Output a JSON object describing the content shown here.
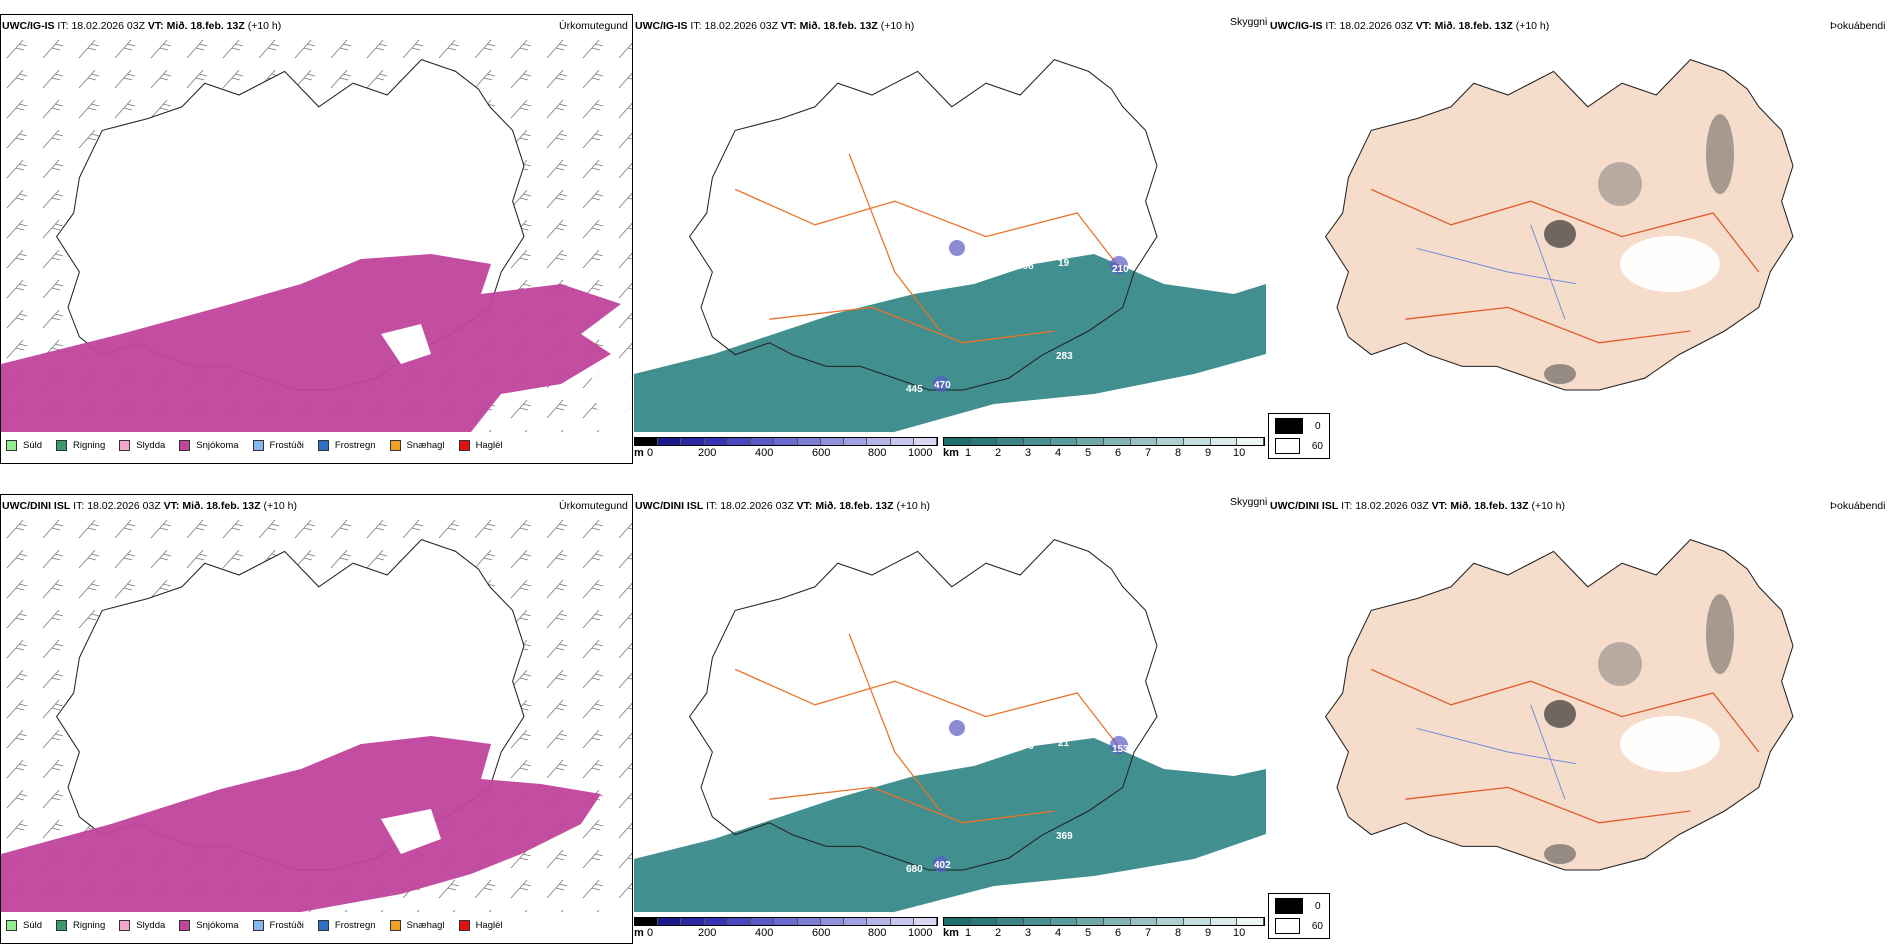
{
  "rows": [
    {
      "model": "UWC/IG-IS",
      "it_label": "IT:",
      "it_value": "18.02.2026 03Z",
      "vt_label": "VT:",
      "vt_value": "Mið. 18.feb. 13Z",
      "lead": "(+10 h)",
      "precip_title": "Úrkomutegund",
      "visibility_title": "Skyggni",
      "fog_title": "Þokuábendi",
      "terrain_labels": [
        "898",
        "19",
        "210",
        "283",
        "445",
        "470"
      ]
    },
    {
      "model": "UWC/DINI ISL",
      "it_label": "IT:",
      "it_value": "18.02.2026 03Z",
      "vt_label": "VT:",
      "vt_value": "Mið. 18.feb. 13Z",
      "lead": "(+10 h)",
      "precip_title": "Úrkomutegund",
      "visibility_title": "Skyggni",
      "fog_title": "Þokuábendi",
      "terrain_labels": [
        "376",
        "21",
        "153",
        "369",
        "680",
        "402"
      ]
    }
  ],
  "precip_legend": [
    {
      "label": "Súld",
      "color": "#90ee90"
    },
    {
      "label": "Rigning",
      "color": "#3a9a6a"
    },
    {
      "label": "Slydda",
      "color": "#f0a8d0"
    },
    {
      "label": "Snjókoma",
      "color": "#c0449c"
    },
    {
      "label": "Frostúði",
      "color": "#88b8f0"
    },
    {
      "label": "Frostregn",
      "color": "#3070c8"
    },
    {
      "label": "Snæhagl",
      "color": "#f0a020"
    },
    {
      "label": "Haglél",
      "color": "#e01010"
    }
  ],
  "elevation_bar": {
    "unit": "m",
    "ticks": [
      "0",
      "200",
      "400",
      "600",
      "800",
      "1000"
    ],
    "colors": [
      "#000000",
      "#1a1a8a",
      "#2a2aa0",
      "#3535b4",
      "#4848c0",
      "#5a5ac8",
      "#6c6cd0",
      "#7e7ed6",
      "#9090dc",
      "#a2a2e2",
      "#b4b4e8",
      "#c6c6ee",
      "#d8d8f2"
    ]
  },
  "visibility_bar": {
    "unit": "km",
    "ticks": [
      "1",
      "2",
      "3",
      "4",
      "5",
      "6",
      "7",
      "8",
      "9",
      "10"
    ],
    "colors": [
      "#1e6e6e",
      "#2a7878",
      "#3a8484",
      "#4a9090",
      "#5a9c9c",
      "#6ea8a8",
      "#82b4b4",
      "#98c2c2",
      "#aed0d0",
      "#c4dede",
      "#dae9e9",
      "#eef5f5"
    ]
  },
  "fog_key": [
    {
      "label": "0",
      "color": "#000000"
    },
    {
      "label": "60",
      "color": "#ffffff"
    }
  ],
  "colors": {
    "snow": "#c0449c",
    "visibility": "#2c8383",
    "roads": "#e8742a",
    "land_tint": "#f5dccb",
    "rivers": "#6a8ae0"
  }
}
